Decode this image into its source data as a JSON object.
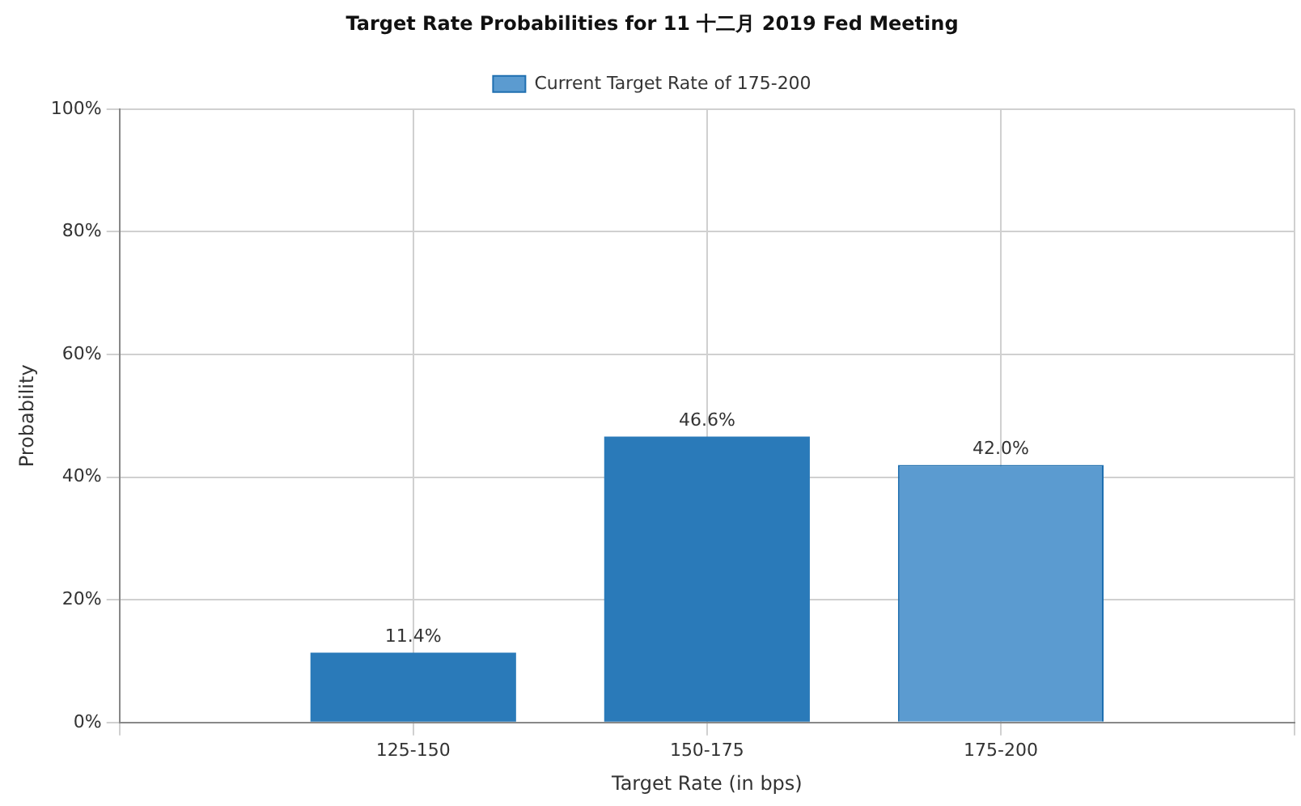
{
  "chart_data": {
    "type": "bar",
    "title": "Target Rate Probabilities for 11 十二月 2019 Fed Meeting",
    "xlabel": "Target Rate (in bps)",
    "ylabel": "Probability",
    "categories": [
      null,
      "125-150",
      "150-175",
      "175-200",
      null
    ],
    "series": [
      {
        "color": "#2a7ab9",
        "values": [
          null,
          11.4,
          46.6,
          null,
          null
        ],
        "value_labels": [
          null,
          "11.4%",
          "46.6%",
          null,
          null
        ]
      },
      {
        "name": "Current Target Rate of 175-200",
        "color": "#5b9bd0",
        "values": [
          null,
          null,
          null,
          42.0,
          null
        ],
        "value_labels": [
          null,
          null,
          null,
          "42.0%",
          null
        ]
      }
    ],
    "ylim": [
      0,
      100
    ],
    "yticks": [
      {
        "value": 0,
        "label": "0%"
      },
      {
        "value": 20,
        "label": "20%"
      },
      {
        "value": 40,
        "label": "40%"
      },
      {
        "value": 60,
        "label": "60%"
      },
      {
        "value": 80,
        "label": "80%"
      },
      {
        "value": 100,
        "label": "100%"
      }
    ],
    "grid": true,
    "legend": "top"
  }
}
